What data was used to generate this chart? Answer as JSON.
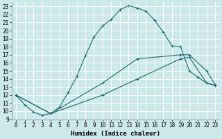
{
  "title": "",
  "xlabel": "Humidex (Indice chaleur)",
  "bg_color": "#cce8ea",
  "line_color": "#1a6b6b",
  "grid_color": "#ffffff",
  "xlim": [
    -0.5,
    23.5
  ],
  "ylim": [
    9,
    23.5
  ],
  "xticks": [
    0,
    1,
    2,
    3,
    4,
    5,
    6,
    7,
    8,
    9,
    10,
    11,
    12,
    13,
    14,
    15,
    16,
    17,
    18,
    19,
    20,
    21,
    22,
    23
  ],
  "yticks": [
    9,
    10,
    11,
    12,
    13,
    14,
    15,
    16,
    17,
    18,
    19,
    20,
    21,
    22,
    23
  ],
  "line1_x": [
    0,
    1,
    2,
    3,
    4,
    5,
    6,
    7,
    8,
    9,
    10,
    11,
    12,
    13,
    14,
    15,
    16,
    17,
    18,
    19,
    20,
    21,
    22,
    23
  ],
  "line1_y": [
    12,
    10.8,
    9.9,
    9.5,
    9.7,
    10.5,
    12.3,
    14.3,
    16.9,
    19.2,
    20.6,
    21.4,
    22.6,
    23.1,
    22.8,
    22.4,
    21.3,
    19.8,
    18.1,
    18.0,
    15.0,
    14.2,
    13.5,
    13.2
  ],
  "line2_x": [
    0,
    4,
    10,
    14,
    19,
    20,
    22,
    23
  ],
  "line2_y": [
    12,
    9.7,
    13.5,
    16.5,
    17.0,
    17.0,
    15.0,
    13.3
  ],
  "line3_x": [
    0,
    4,
    10,
    14,
    19,
    20,
    22,
    23
  ],
  "line3_y": [
    12,
    9.7,
    12.0,
    14.0,
    16.5,
    16.7,
    13.5,
    13.2
  ],
  "tick_fontsize": 5.5,
  "label_fontsize": 6.5
}
